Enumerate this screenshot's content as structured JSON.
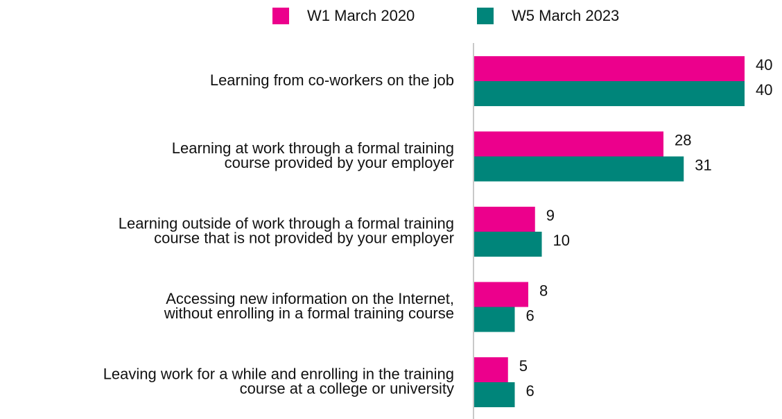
{
  "chart_data": {
    "type": "bar",
    "orientation": "horizontal",
    "categories": [
      [
        "Learning from co-workers on the job"
      ],
      [
        "Learning at work through a formal training",
        "course provided by your employer"
      ],
      [
        "Learning outside of work through a formal training",
        "course that is not provided by your employer"
      ],
      [
        "Accessing new information on the Internet,",
        "without enrolling in a formal training course"
      ],
      [
        "Leaving work for a while and enrolling in the training",
        "course at a college or university"
      ]
    ],
    "series": [
      {
        "name": "W1 March 2020",
        "color": "#ec008c",
        "values": [
          40,
          28,
          9,
          8,
          5
        ]
      },
      {
        "name": "W5 March 2023",
        "color": "#00857a",
        "values": [
          40,
          31,
          10,
          6,
          6
        ]
      }
    ],
    "legend": "top"
  }
}
